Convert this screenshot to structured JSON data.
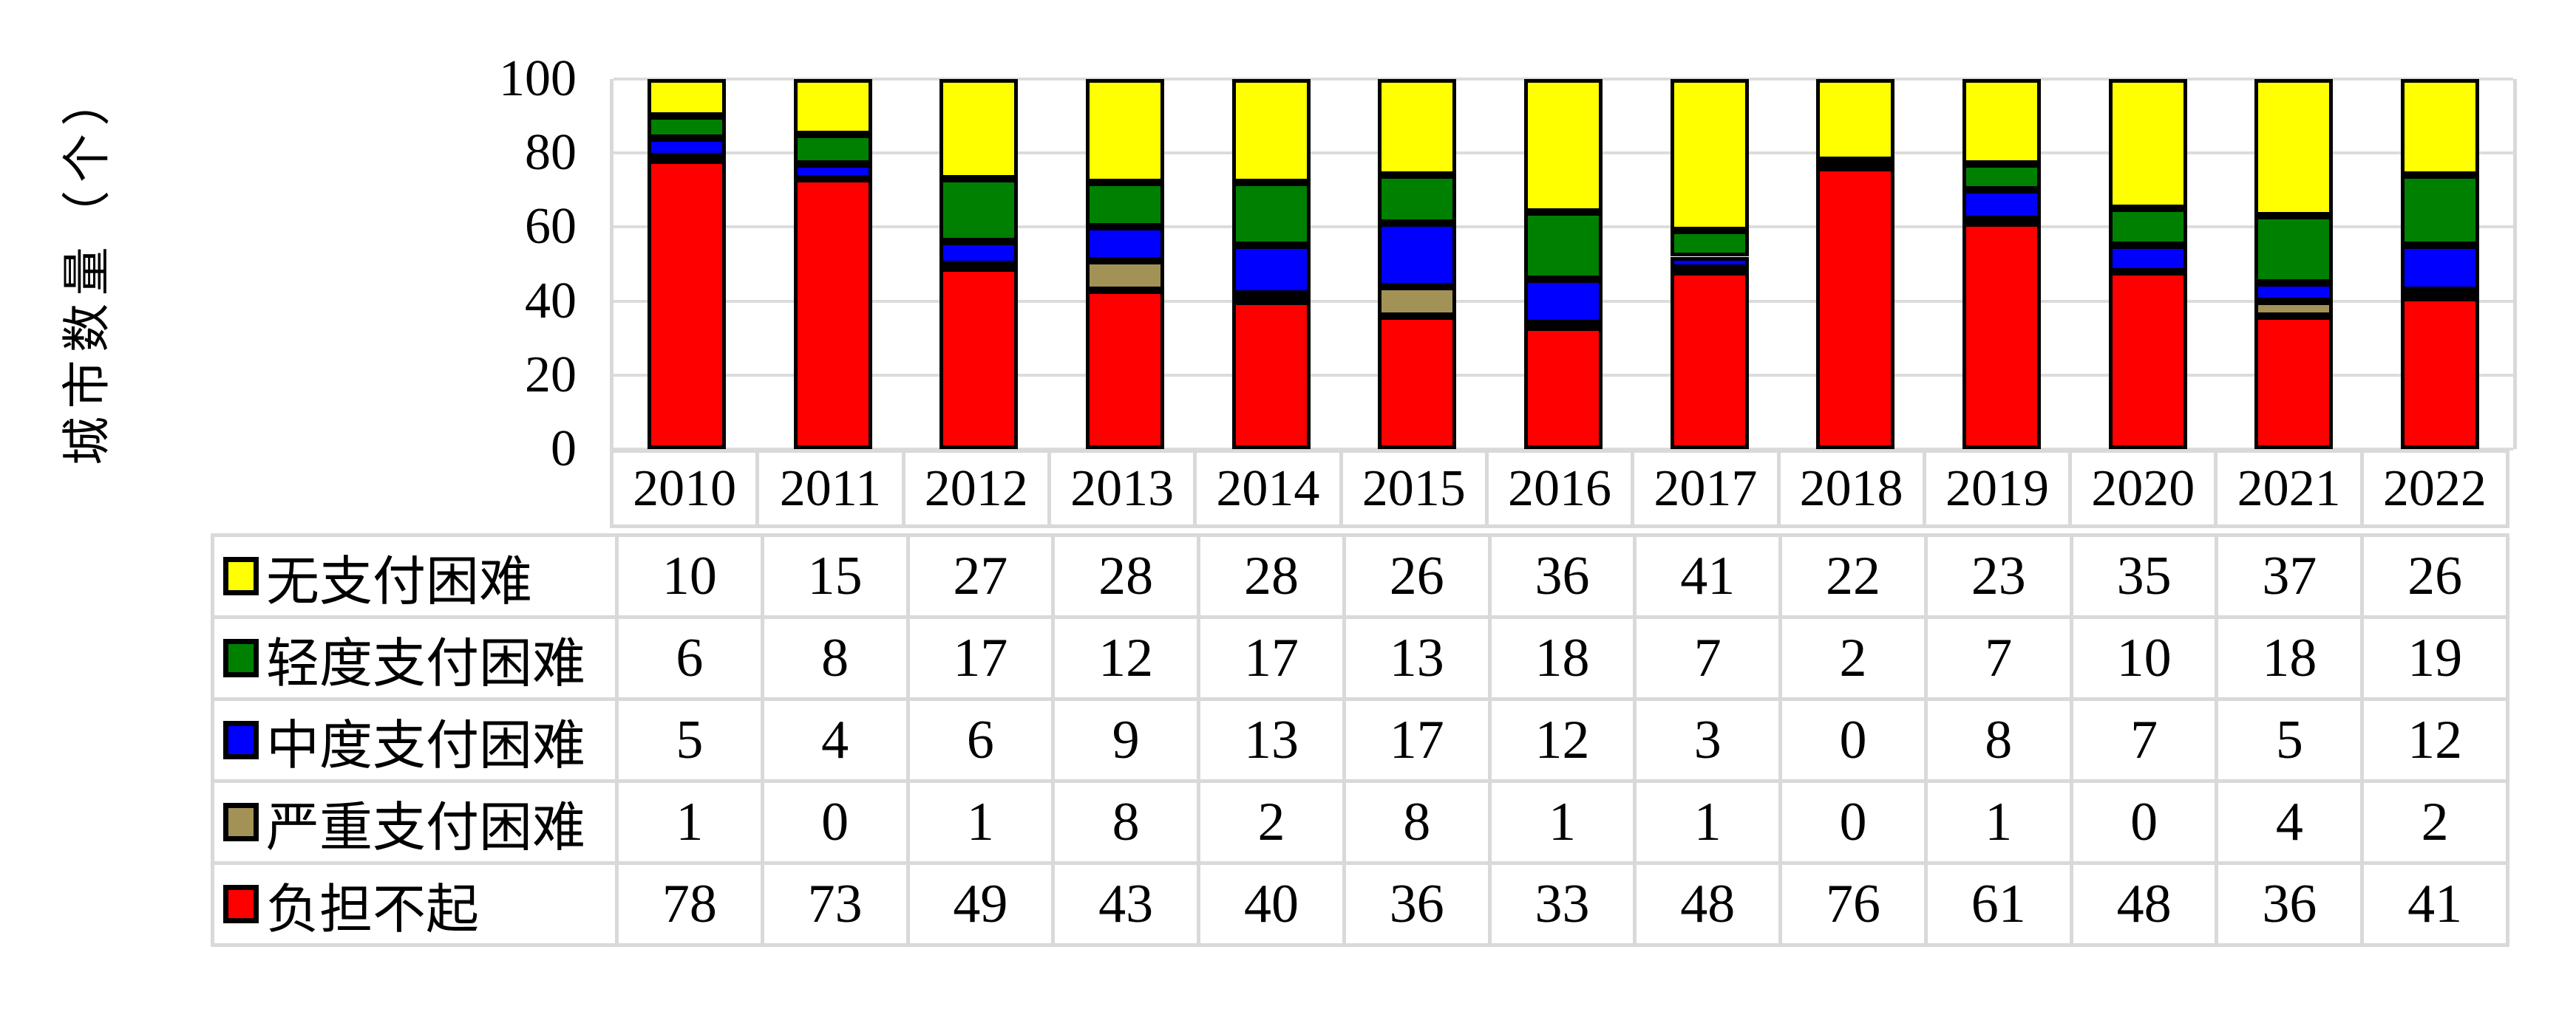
{
  "y_axis": {
    "title": "城市数量（个）",
    "tick_labels": [
      "100",
      "80",
      "60",
      "40",
      "20",
      "0"
    ],
    "range": [
      0,
      100
    ]
  },
  "chart_data": {
    "type": "bar",
    "stacked": true,
    "ylabel": "城市数量（个）",
    "ylim": [
      0,
      100
    ],
    "grid": "horizontal",
    "gridline_step": 20,
    "legend_position": "table-rows-left",
    "categories": [
      "2010",
      "2011",
      "2012",
      "2013",
      "2014",
      "2015",
      "2016",
      "2017",
      "2018",
      "2019",
      "2020",
      "2021",
      "2022"
    ],
    "series": [
      {
        "name": "无支付困难",
        "color": "#FFFF00",
        "values": [
          10,
          15,
          27,
          28,
          28,
          26,
          36,
          41,
          22,
          23,
          35,
          37,
          26
        ]
      },
      {
        "name": "轻度支付困难",
        "color": "#008000",
        "values": [
          6,
          8,
          17,
          12,
          17,
          13,
          18,
          7,
          2,
          7,
          10,
          18,
          19
        ]
      },
      {
        "name": "中度支付困难",
        "color": "#0000FF",
        "values": [
          5,
          4,
          6,
          9,
          13,
          17,
          12,
          3,
          0,
          8,
          7,
          5,
          12
        ]
      },
      {
        "name": "严重支付困难",
        "color": "#A29255",
        "values": [
          1,
          0,
          1,
          8,
          2,
          8,
          1,
          1,
          0,
          1,
          0,
          4,
          2
        ]
      },
      {
        "name": "负担不起",
        "color": "#FF0000",
        "values": [
          78,
          73,
          49,
          43,
          40,
          36,
          33,
          48,
          76,
          61,
          48,
          36,
          41
        ]
      }
    ],
    "stack_order_bottom_to_top": [
      "负担不起",
      "严重支付困难",
      "中度支付困难",
      "轻度支付困难",
      "无支付困难"
    ]
  },
  "style_colors": {
    "gridline": "#DCDCDC",
    "table_border": "#D9D9D9",
    "bar_outline": "#000000",
    "background": "#FFFFFF"
  }
}
